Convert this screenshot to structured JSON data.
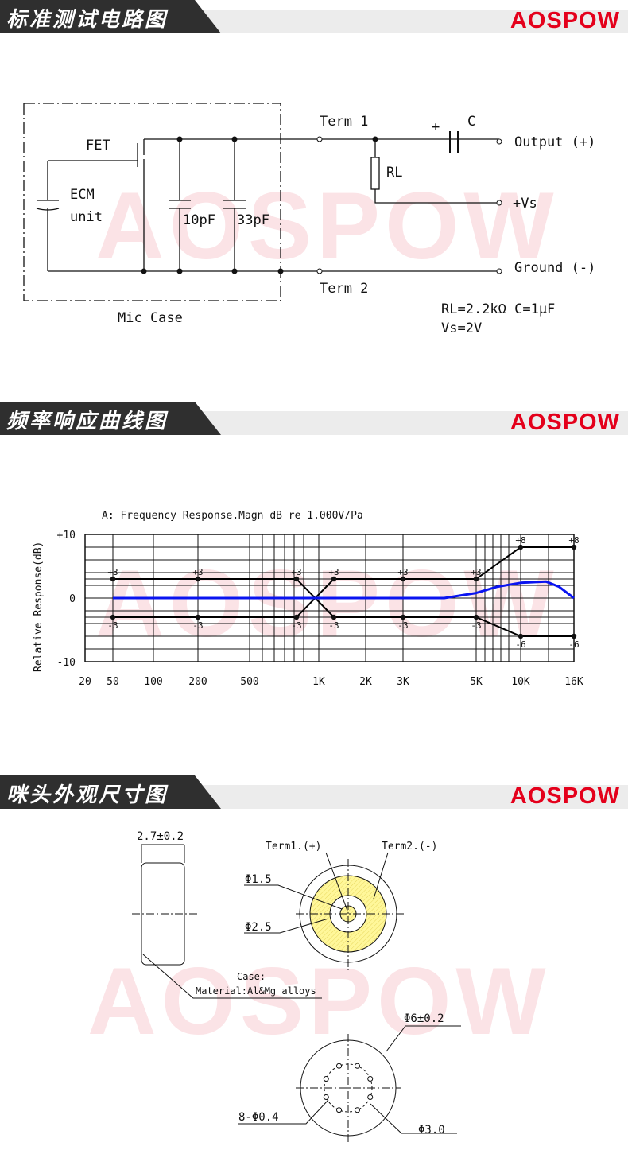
{
  "brand": {
    "logo": "AOSPOW",
    "accent_color": "#e4001b",
    "watermark": "AOSPOW"
  },
  "sections": [
    {
      "title": "标准测试电路图"
    },
    {
      "title": "频率响应曲线图"
    },
    {
      "title": "咪头外观尺寸图"
    }
  ],
  "circuit": {
    "fet": "FET",
    "ecm": "ECM",
    "unit": "unit",
    "c1": "10pF",
    "c2": "33pF",
    "mic_case": "Mic Case",
    "term1": "Term 1",
    "term2": "Term 2",
    "rl": "RL",
    "cap_plus": "+",
    "cap": "C",
    "output": "Output (+)",
    "vs": "+Vs",
    "ground": "Ground (-)",
    "spec1": "RL=2.2kΩ  C=1μF",
    "spec2": "Vs=2V"
  },
  "chart_data": {
    "type": "line",
    "title": "A: Frequency Response.Magn  dB re 1.000V/Pa",
    "ylabel": "Relative Response(dB)",
    "xlabel": "",
    "ylim": [
      -10,
      10
    ],
    "yticks": [
      "+10",
      "0",
      "-10"
    ],
    "xticks": [
      {
        "label": "20",
        "f": 20
      },
      {
        "label": "50",
        "f": 50
      },
      {
        "label": "100",
        "f": 100
      },
      {
        "label": "200",
        "f": 200
      },
      {
        "label": "500",
        "f": 500
      },
      {
        "label": "1K",
        "f": 1000
      },
      {
        "label": "2K",
        "f": 2000
      },
      {
        "label": "3K",
        "f": 3000
      },
      {
        "label": "5K",
        "f": 5000
      },
      {
        "label": "10K",
        "f": 10000
      },
      {
        "label": "16K",
        "f": 16000
      }
    ],
    "x_scale": "log",
    "grid": true,
    "tolerance_lines": [
      {
        "points": [
          [
            50,
            3
          ],
          [
            200,
            3
          ],
          [
            800,
            3
          ],
          [
            1250,
            -3
          ],
          [
            3000,
            -3
          ],
          [
            5000,
            -3
          ],
          [
            10000,
            -6
          ],
          [
            16000,
            -6
          ]
        ],
        "color": "#000000"
      },
      {
        "points": [
          [
            50,
            -3
          ],
          [
            200,
            -3
          ],
          [
            800,
            -3
          ],
          [
            1250,
            3
          ],
          [
            3000,
            3
          ],
          [
            5000,
            3
          ],
          [
            10000,
            8
          ],
          [
            16000,
            8
          ]
        ],
        "color": "#000000"
      }
    ],
    "response": {
      "points": [
        [
          50,
          0
        ],
        [
          4000,
          0
        ],
        [
          5000,
          0.8
        ],
        [
          7000,
          1.8
        ],
        [
          10000,
          2.4
        ],
        [
          12500,
          2.6
        ],
        [
          14000,
          1.8
        ],
        [
          16000,
          0
        ]
      ],
      "color": "#0a14f0"
    }
  },
  "dimensions": {
    "thickness": "2.7±0.2",
    "term1": "Term1.(+)",
    "term2": "Term2.(-)",
    "d_inner": "Φ1.5",
    "d_mid": "Φ2.5",
    "case": "Case:",
    "material": "Material:Al&Mg alloys",
    "d_outer": "Φ6±0.2",
    "holes": "8-Φ0.4",
    "d_holes": "Φ3.0",
    "fill_color": "#fff79a"
  }
}
